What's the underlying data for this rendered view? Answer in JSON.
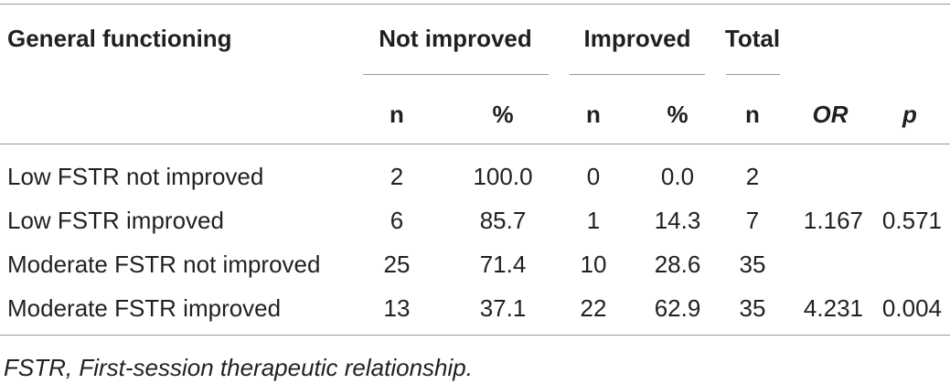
{
  "header": {
    "title": "General functioning",
    "groups": {
      "not_improved": "Not improved",
      "improved": "Improved",
      "total": "Total"
    },
    "sub": {
      "n1": "n",
      "pct1": "%",
      "n2": "n",
      "pct2": "%",
      "n3": "n",
      "or": "OR",
      "p": "p"
    }
  },
  "rows": [
    {
      "label": "Low FSTR not improved",
      "ni_n": "2",
      "ni_pct": "100.0",
      "im_n": "0",
      "im_pct": "0.0",
      "total": "2",
      "or": "",
      "p": ""
    },
    {
      "label": "Low FSTR improved",
      "ni_n": "6",
      "ni_pct": "85.7",
      "im_n": "1",
      "im_pct": "14.3",
      "total": "7",
      "or": "1.167",
      "p": "0.571"
    },
    {
      "label": "Moderate FSTR not improved",
      "ni_n": "25",
      "ni_pct": "71.4",
      "im_n": "10",
      "im_pct": "28.6",
      "total": "35",
      "or": "",
      "p": ""
    },
    {
      "label": "Moderate FSTR improved",
      "ni_n": "13",
      "ni_pct": "37.1",
      "im_n": "22",
      "im_pct": "62.9",
      "total": "35",
      "or": "4.231",
      "p": "0.004"
    }
  ],
  "footnote": "FSTR, First-session therapeutic relationship."
}
